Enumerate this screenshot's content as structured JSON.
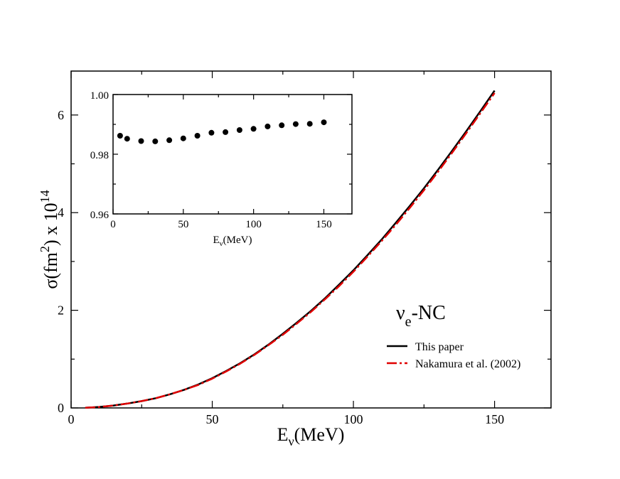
{
  "chart_data": [
    {
      "type": "line",
      "xlabel_main": "E",
      "xlabel_sub": "ν",
      "xlabel_unit": "(MeV)",
      "ylabel": "σ(fm",
      "ylabel_sup": "2",
      "ylabel_rest": ") x 10",
      "ylabel_exp": "14",
      "xlim": [
        0,
        170
      ],
      "ylim": [
        0,
        6.9
      ],
      "xticks": [
        0,
        50,
        100,
        150
      ],
      "yticks": [
        0,
        2,
        4,
        6
      ],
      "xtick_labels": [
        "0",
        "50",
        "100",
        "150"
      ],
      "ytick_labels": [
        "0",
        "2",
        "4",
        "6"
      ],
      "annotation_main": "ν",
      "annotation_sub": "e",
      "annotation_rest": "-NC",
      "legend_position": "lower-right",
      "x": [
        5,
        10,
        15,
        20,
        25,
        30,
        35,
        40,
        45,
        50,
        55,
        60,
        65,
        70,
        75,
        80,
        85,
        90,
        95,
        100,
        105,
        110,
        115,
        120,
        125,
        130,
        135,
        140,
        145,
        150
      ],
      "series": [
        {
          "name": "This paper",
          "color": "#000000",
          "dash": "solid",
          "values": [
            0.003,
            0.02,
            0.05,
            0.09,
            0.14,
            0.2,
            0.28,
            0.37,
            0.48,
            0.61,
            0.76,
            0.92,
            1.1,
            1.3,
            1.52,
            1.75,
            1.99,
            2.25,
            2.53,
            2.82,
            3.13,
            3.45,
            3.79,
            4.14,
            4.5,
            4.88,
            5.27,
            5.67,
            6.08,
            6.5
          ]
        },
        {
          "name": "Nakamura et al. (2002)",
          "color": "#e00000",
          "dash": "dashed",
          "values": [
            0.003,
            0.02,
            0.05,
            0.09,
            0.14,
            0.2,
            0.28,
            0.37,
            0.47,
            0.6,
            0.75,
            0.91,
            1.09,
            1.29,
            1.5,
            1.73,
            1.97,
            2.23,
            2.5,
            2.79,
            3.1,
            3.42,
            3.75,
            4.1,
            4.46,
            4.84,
            5.23,
            5.63,
            6.04,
            6.45
          ]
        }
      ]
    },
    {
      "type": "scatter",
      "xlabel_main": "E",
      "xlabel_sub": "ν",
      "xlabel_unit": "(MeV)",
      "ylabel": "",
      "xlim": [
        0,
        170
      ],
      "ylim": [
        0.96,
        1.0
      ],
      "xticks": [
        0,
        50,
        100,
        150
      ],
      "yticks": [
        0.96,
        0.98,
        1.0
      ],
      "xtick_labels": [
        "0",
        "50",
        "100",
        "150"
      ],
      "ytick_labels": [
        "0.96",
        "0.98",
        "1.00"
      ],
      "x": [
        5,
        10,
        20,
        30,
        40,
        50,
        60,
        70,
        80,
        90,
        100,
        110,
        120,
        130,
        140,
        150
      ],
      "values": [
        0.9862,
        0.9852,
        0.9844,
        0.9843,
        0.9847,
        0.9853,
        0.9862,
        0.9872,
        0.9874,
        0.9881,
        0.9885,
        0.9893,
        0.9897,
        0.9901,
        0.9902,
        0.9907
      ]
    }
  ]
}
